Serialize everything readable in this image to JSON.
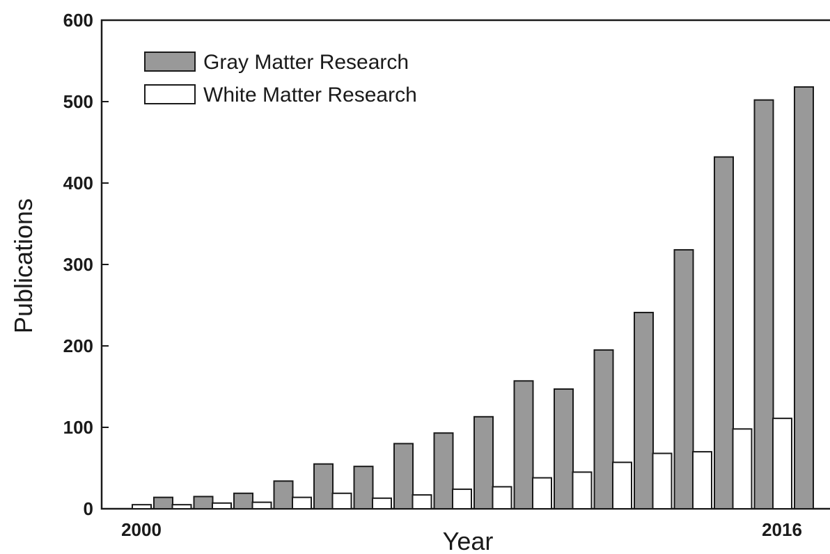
{
  "chart_data": {
    "type": "bar",
    "x": [
      2000,
      2001,
      2002,
      2003,
      2004,
      2005,
      2006,
      2007,
      2008,
      2009,
      2010,
      2011,
      2012,
      2013,
      2014,
      2015,
      2016
    ],
    "x_tick_labels": [
      "2000",
      "2016"
    ],
    "series": [
      {
        "name": "White Matter Research",
        "color": "#ffffff",
        "values": [
          5,
          5,
          7,
          8,
          14,
          19,
          13,
          17,
          24,
          27,
          38,
          45,
          57,
          68,
          70,
          98,
          111
        ]
      },
      {
        "name": "Gray Matter Research",
        "color": "#999999",
        "values": [
          14,
          15,
          19,
          34,
          55,
          52,
          80,
          93,
          113,
          157,
          147,
          195,
          241,
          318,
          432,
          502,
          518
        ]
      }
    ],
    "xlabel": "Year",
    "ylabel": "Publications",
    "ylim": [
      0,
      600
    ],
    "yticks": [
      0,
      100,
      200,
      300,
      400,
      500,
      600
    ],
    "grid": false,
    "legend_position": "top-left"
  }
}
